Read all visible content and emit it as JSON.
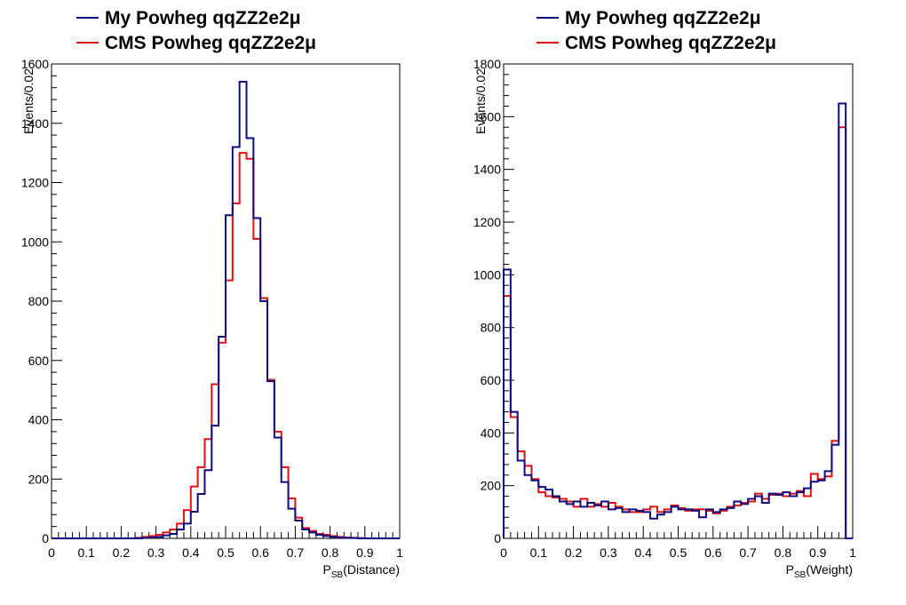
{
  "colors": {
    "series1": "#0c0c80",
    "series2": "#e01010"
  },
  "chart_data": [
    {
      "type": "histogram",
      "xlabel_main": "P",
      "xlabel_sub": "SB",
      "xlabel_rest": "(Distance)",
      "ylabel": "Events/0.02",
      "xlim": [
        0,
        1
      ],
      "ylim": [
        0,
        1600
      ],
      "bin_width": 0.02,
      "x_ticks": [
        0,
        0.1,
        0.2,
        0.3,
        0.4,
        0.5,
        0.6,
        0.7,
        0.8,
        0.9,
        1
      ],
      "x_tick_labels": [
        "0",
        "0.1",
        "0.2",
        "0.3",
        "0.4",
        "0.5",
        "0.6",
        "0.7",
        "0.8",
        "0.9",
        "1"
      ],
      "y_ticks": [
        0,
        200,
        400,
        600,
        800,
        1000,
        1200,
        1400,
        1600
      ],
      "y_tick_labels": [
        "0",
        "200",
        "400",
        "600",
        "800",
        "1000",
        "1200",
        "1400",
        "1600"
      ],
      "legend_position": "top-left",
      "series": [
        {
          "name": "My Powheg qqZZ2e2μ",
          "values": [
            0,
            0,
            0,
            0,
            0,
            0,
            0,
            0,
            0,
            0,
            0,
            0,
            0,
            2,
            3,
            5,
            10,
            15,
            30,
            50,
            90,
            150,
            230,
            380,
            680,
            1090,
            1320,
            1540,
            1350,
            1080,
            800,
            530,
            340,
            190,
            100,
            60,
            30,
            20,
            12,
            8,
            5,
            3,
            2,
            1,
            0,
            0,
            0,
            0,
            0,
            0
          ]
        },
        {
          "name": "CMS Powheg qqZZ2e2μ",
          "values": [
            0,
            0,
            0,
            0,
            0,
            0,
            0,
            0,
            0,
            0,
            0,
            0,
            2,
            5,
            8,
            12,
            20,
            30,
            50,
            95,
            175,
            240,
            335,
            520,
            660,
            870,
            1130,
            1300,
            1280,
            1010,
            810,
            535,
            360,
            240,
            135,
            70,
            35,
            25,
            15,
            12,
            8,
            5,
            3,
            2,
            1,
            0,
            0,
            0,
            0,
            0
          ]
        }
      ]
    },
    {
      "type": "histogram",
      "xlabel_main": "P",
      "xlabel_sub": "SB",
      "xlabel_rest": "(Weight)",
      "ylabel": "Events/0.02",
      "xlim": [
        0,
        1
      ],
      "ylim": [
        0,
        1800
      ],
      "bin_width": 0.02,
      "x_ticks": [
        0,
        0.1,
        0.2,
        0.3,
        0.4,
        0.5,
        0.6,
        0.7,
        0.8,
        0.9,
        1
      ],
      "x_tick_labels": [
        "0",
        "0.1",
        "0.2",
        "0.3",
        "0.4",
        "0.5",
        "0.6",
        "0.7",
        "0.8",
        "0.9",
        "1"
      ],
      "y_ticks": [
        0,
        200,
        400,
        600,
        800,
        1000,
        1200,
        1400,
        1600,
        1800
      ],
      "y_tick_labels": [
        "0",
        "200",
        "400",
        "600",
        "800",
        "1000",
        "1200",
        "1400",
        "1600",
        "1800"
      ],
      "legend_position": "top-left",
      "series": [
        {
          "name": "My Powheg qqZZ2e2μ",
          "values": [
            1020,
            480,
            295,
            240,
            220,
            195,
            185,
            160,
            140,
            130,
            140,
            120,
            135,
            125,
            140,
            110,
            115,
            100,
            110,
            105,
            100,
            75,
            90,
            100,
            120,
            110,
            110,
            105,
            80,
            110,
            100,
            110,
            115,
            140,
            130,
            150,
            160,
            135,
            170,
            165,
            175,
            160,
            175,
            190,
            215,
            220,
            255,
            355,
            1650,
            0
          ]
        },
        {
          "name": "CMS Powheg qqZZ2e2μ",
          "values": [
            920,
            460,
            330,
            275,
            225,
            175,
            160,
            155,
            150,
            140,
            120,
            150,
            120,
            130,
            120,
            135,
            120,
            110,
            100,
            100,
            110,
            120,
            100,
            110,
            125,
            115,
            105,
            110,
            110,
            105,
            95,
            105,
            120,
            125,
            135,
            140,
            170,
            150,
            165,
            170,
            160,
            170,
            180,
            160,
            245,
            225,
            235,
            370,
            1560,
            0
          ]
        }
      ]
    }
  ]
}
